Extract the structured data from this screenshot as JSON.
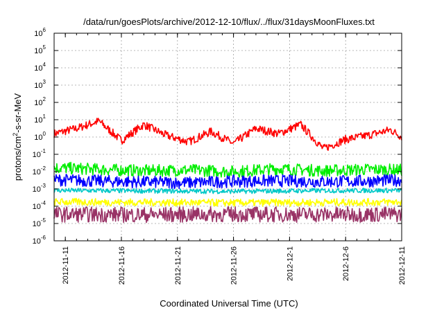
{
  "chart_data": {
    "type": "line",
    "title": "/data/run/goesPlots/archive/2012-12-10/flux/../flux/31daysMoonFluxes.txt",
    "xlabel": "Coordinated Universal Time (UTC)",
    "ylabel": "protons/cm2-s-sr-MeV",
    "xlim": [
      "2012-11-10",
      "2012-12-11"
    ],
    "ylim": [
      1e-06,
      1000000.0
    ],
    "yscale": "log",
    "grid": true,
    "x_ticks": [
      "2012-11-11",
      "2012-11-16",
      "2012-11-21",
      "2012-11-26",
      "2012-12-1",
      "2012-12-6",
      "2012-12-11"
    ],
    "x_tick_dates": [
      "2012-11-11",
      "2012-11-16",
      "2012-11-21",
      "2012-11-26",
      "2012-12-01",
      "2012-12-06",
      "2012-12-11"
    ],
    "y_ticks": [
      {
        "base": "10",
        "exp": "6"
      },
      {
        "base": "10",
        "exp": "5"
      },
      {
        "base": "10",
        "exp": "4"
      },
      {
        "base": "10",
        "exp": "3"
      },
      {
        "base": "10",
        "exp": "2"
      },
      {
        "base": "10",
        "exp": "1"
      },
      {
        "base": "10",
        "exp": "0"
      },
      {
        "base": "10",
        "exp": "-1"
      },
      {
        "base": "10",
        "exp": "-2"
      },
      {
        "base": "10",
        "exp": "-3"
      },
      {
        "base": "10",
        "exp": "-4"
      },
      {
        "base": "10",
        "exp": "-5"
      },
      {
        "base": "10",
        "exp": "-6"
      }
    ],
    "series": [
      {
        "color": "#ff0000",
        "x": [
          "2012-11-10",
          "2012-11-12",
          "2012-11-14",
          "2012-11-16",
          "2012-11-18",
          "2012-11-20",
          "2012-11-22",
          "2012-11-24",
          "2012-11-26",
          "2012-11-28",
          "2012-11-30",
          "2012-12-02",
          "2012-12-04",
          "2012-12-06",
          "2012-12-08",
          "2012-12-10",
          "2012-12-11"
        ],
        "values": [
          1.5,
          3,
          8,
          0.6,
          5,
          1.2,
          0.5,
          2,
          0.4,
          3,
          1.5,
          5,
          0.2,
          0.7,
          1.2,
          2.5,
          1
        ],
        "range": [
          0.6,
          1.8
        ]
      },
      {
        "color": "#00ee00",
        "x": [
          "2012-11-10",
          "2012-11-14",
          "2012-11-18",
          "2012-11-22",
          "2012-11-26",
          "2012-11-30",
          "2012-12-04",
          "2012-12-08",
          "2012-12-11"
        ],
        "values": [
          0.015,
          0.012,
          0.01,
          0.011,
          0.009,
          0.013,
          0.01,
          0.012,
          0.011
        ],
        "range": [
          0.5,
          2.5
        ]
      },
      {
        "color": "#0000ff",
        "x": [
          "2012-11-10",
          "2012-11-14",
          "2012-11-18",
          "2012-11-22",
          "2012-11-26",
          "2012-11-30",
          "2012-12-04",
          "2012-12-08",
          "2012-12-11"
        ],
        "values": [
          0.003,
          0.0025,
          0.0022,
          0.002,
          0.0024,
          0.0026,
          0.0023,
          0.0025,
          0.0028
        ],
        "range": [
          0.5,
          2.6
        ]
      },
      {
        "color": "#00c8c8",
        "x": [
          "2012-11-10",
          "2012-11-18",
          "2012-11-26",
          "2012-12-04",
          "2012-12-11"
        ],
        "values": [
          0.0008,
          0.00075,
          0.0007,
          0.00078,
          0.0008
        ],
        "range": [
          0.75,
          1.4
        ]
      },
      {
        "color": "#ffff00",
        "x": [
          "2012-11-10",
          "2012-11-18",
          "2012-11-26",
          "2012-12-04",
          "2012-12-11"
        ],
        "values": [
          0.00018,
          0.00017,
          0.00016,
          0.00017,
          0.00018
        ],
        "range": [
          0.6,
          1.6
        ]
      },
      {
        "color": "#993366",
        "x": [
          "2012-11-10",
          "2012-11-18",
          "2012-11-26",
          "2012-12-04",
          "2012-12-11"
        ],
        "values": [
          3e-05,
          2.8e-05,
          3e-05,
          2.9e-05,
          3e-05
        ],
        "range": [
          0.4,
          3.2
        ]
      }
    ]
  }
}
